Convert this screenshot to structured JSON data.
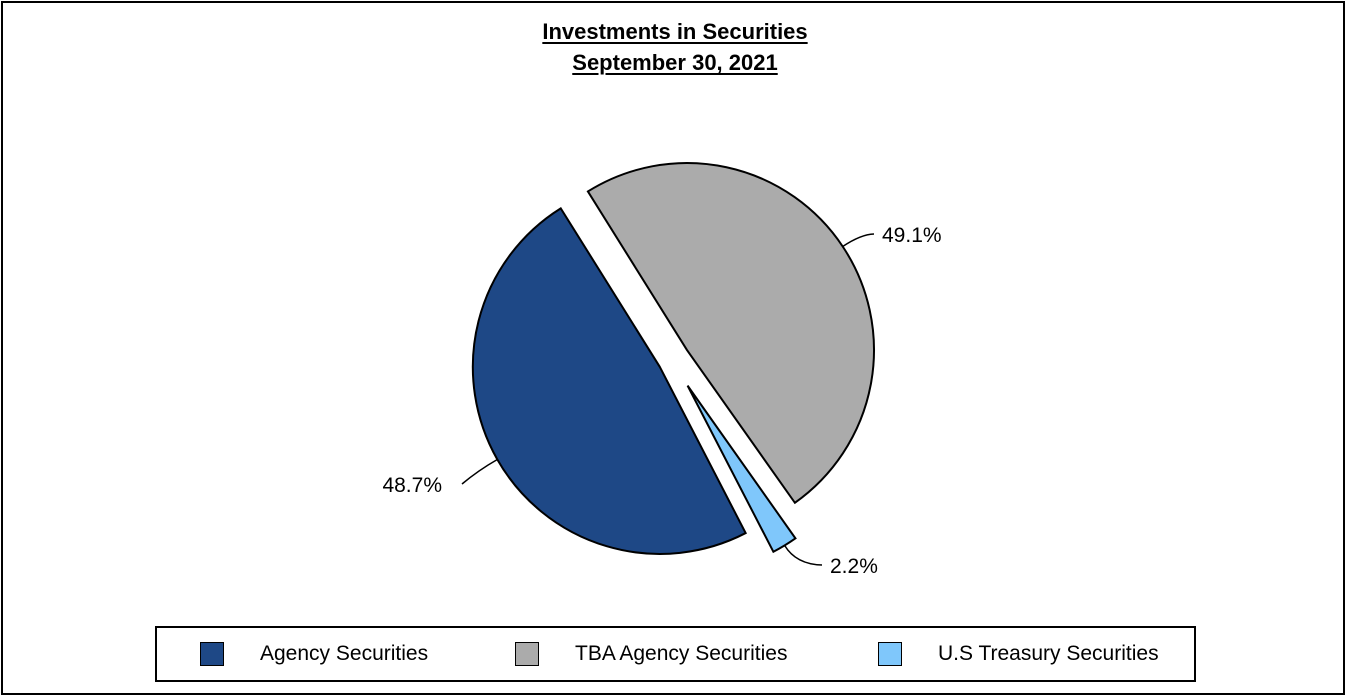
{
  "chart_data": {
    "type": "pie",
    "title": "Investments in Securities",
    "subtitle": "September 30, 2021",
    "slices": [
      {
        "name": "TBA Agency Securities",
        "value": 49.1,
        "label": "49.1%",
        "color": "#ABABAB"
      },
      {
        "name": "U.S Treasury Securities",
        "value": 2.2,
        "label": "2.2%",
        "color": "#7FC7FB"
      },
      {
        "name": "Agency Securities",
        "value": 48.7,
        "label": "48.7%",
        "color": "#1E4886"
      }
    ],
    "legend": {
      "placement": "bottom",
      "items": [
        {
          "label": "Agency Securities",
          "color": "#1E4886"
        },
        {
          "label": "TBA Agency Securities",
          "color": "#ABABAB"
        },
        {
          "label": "U.S Treasury Securities",
          "color": "#7FC7FB"
        }
      ]
    },
    "exploded": true
  }
}
